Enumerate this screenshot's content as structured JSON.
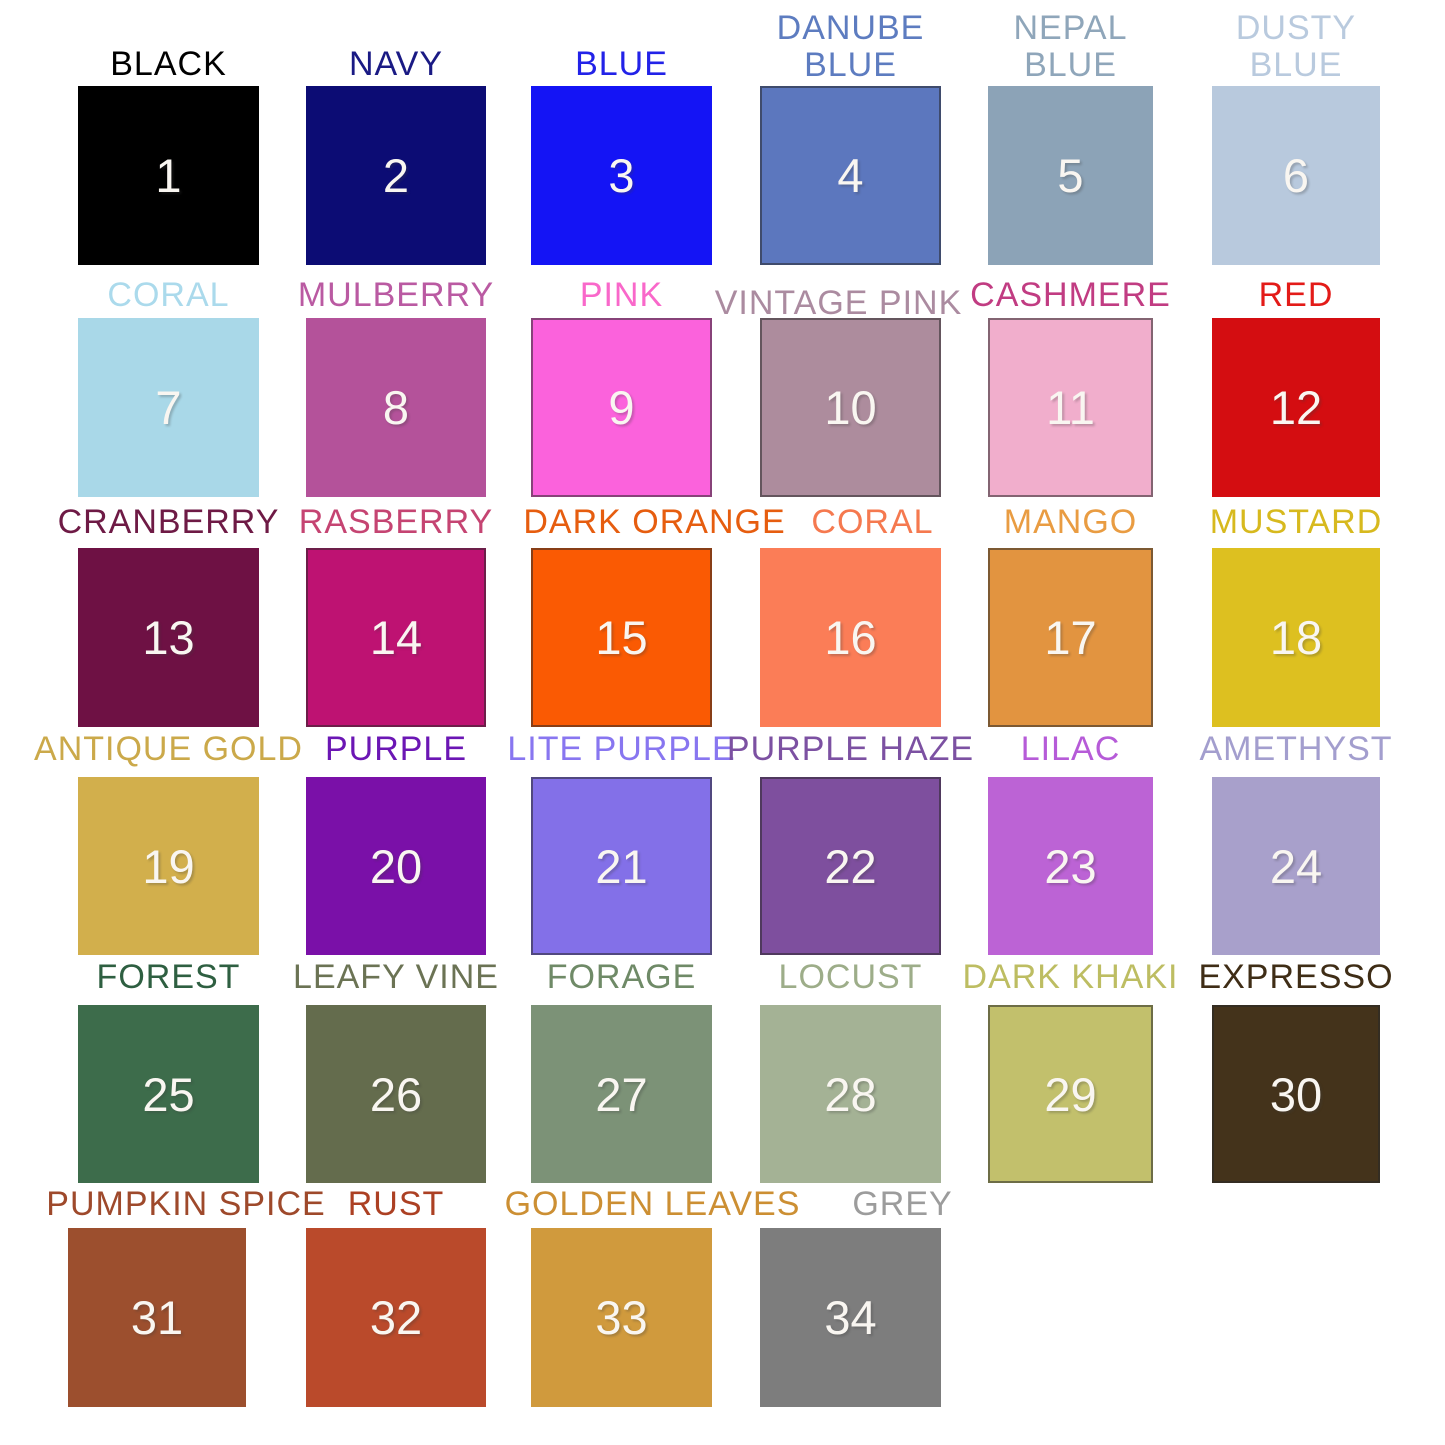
{
  "page": {
    "background": "#ffffff"
  },
  "chart_data": {
    "type": "table",
    "title": "",
    "rows": 6,
    "cols": 6,
    "swatches": [
      {
        "number": 1,
        "label": "BLACK",
        "color": "#000000",
        "label_color": "#000000",
        "bordered": false,
        "row": 1,
        "col": 1
      },
      {
        "number": 2,
        "label": "NAVY",
        "color": "#0c0c74",
        "label_color": "#1a1a84",
        "bordered": false,
        "row": 1,
        "col": 2
      },
      {
        "number": 3,
        "label": "BLUE",
        "color": "#1414f5",
        "label_color": "#2222e8",
        "bordered": false,
        "row": 1,
        "col": 3
      },
      {
        "number": 4,
        "label": "DANUBE BLUE",
        "color": "#5c77be",
        "label_color": "#5d7cc0",
        "bordered": true,
        "row": 1,
        "col": 4
      },
      {
        "number": 5,
        "label": "NEPAL BLUE",
        "color": "#8ca3b7",
        "label_color": "#8fa6ba",
        "bordered": false,
        "row": 1,
        "col": 5
      },
      {
        "number": 6,
        "label": "DUSTY BLUE",
        "color": "#b8c9dd",
        "label_color": "#b9cade",
        "bordered": false,
        "row": 1,
        "col": 6
      },
      {
        "number": 7,
        "label": "CORAL",
        "color": "#a9d8e8",
        "label_color": "#abdaec",
        "bordered": false,
        "row": 2,
        "col": 1
      },
      {
        "number": 8,
        "label": "MULBERRY",
        "color": "#b4529a",
        "label_color": "#ba5aa2",
        "bordered": false,
        "row": 2,
        "col": 2
      },
      {
        "number": 9,
        "label": "PINK",
        "color": "#fb62dc",
        "label_color": "#f968ca",
        "bordered": true,
        "row": 2,
        "col": 3
      },
      {
        "number": 10,
        "label": "VINTAGE PINK",
        "color": "#ad8c9d",
        "label_color": "#ab8ba0",
        "bordered": true,
        "row": 2,
        "col": 4
      },
      {
        "number": 11,
        "label": "CASHMERE",
        "color": "#f1aecc",
        "label_color": "#c13c82",
        "bordered": true,
        "row": 2,
        "col": 5
      },
      {
        "number": 12,
        "label": "RED",
        "color": "#d40d11",
        "label_color": "#e31b18",
        "bordered": false,
        "row": 2,
        "col": 6
      },
      {
        "number": 13,
        "label": "CRANBERRY",
        "color": "#6e1144",
        "label_color": "#6e1a45",
        "bordered": false,
        "row": 3,
        "col": 1
      },
      {
        "number": 14,
        "label": "RASBERRY",
        "color": "#be1272",
        "label_color": "#c54472",
        "bordered": true,
        "row": 3,
        "col": 2
      },
      {
        "number": 15,
        "label": "DARK ORANGE",
        "color": "#fa5a03",
        "label_color": "#e65d0f",
        "bordered": true,
        "row": 3,
        "col": 3
      },
      {
        "number": 16,
        "label": "CORAL",
        "color": "#fb7d57",
        "label_color": "#f5794f",
        "bordered": false,
        "row": 3,
        "col": 4
      },
      {
        "number": 17,
        "label": "MANGO",
        "color": "#e29440",
        "label_color": "#e99c42",
        "bordered": true,
        "row": 3,
        "col": 5
      },
      {
        "number": 18,
        "label": "MUSTARD",
        "color": "#ddc020",
        "label_color": "#d7b91e",
        "bordered": false,
        "row": 3,
        "col": 6
      },
      {
        "number": 19,
        "label": "ANTIQUE GOLD",
        "color": "#d2af4c",
        "label_color": "#cba94a",
        "bordered": false,
        "row": 4,
        "col": 1
      },
      {
        "number": 20,
        "label": "PURPLE",
        "color": "#7a10a8",
        "label_color": "#6b16b4",
        "bordered": false,
        "row": 4,
        "col": 2
      },
      {
        "number": 21,
        "label": "LITE PURPLE",
        "color": "#8370e8",
        "label_color": "#8876f0",
        "bordered": true,
        "row": 4,
        "col": 3
      },
      {
        "number": 22,
        "label": "PURPLE HAZE",
        "color": "#7e4f9e",
        "label_color": "#7c51a2",
        "bordered": true,
        "row": 4,
        "col": 4
      },
      {
        "number": 23,
        "label": "LILAC",
        "color": "#bc63d5",
        "label_color": "#b65bd8",
        "bordered": false,
        "row": 4,
        "col": 5
      },
      {
        "number": 24,
        "label": "AMETHYST",
        "color": "#a8a0cb",
        "label_color": "#a39ece",
        "bordered": false,
        "row": 4,
        "col": 6
      },
      {
        "number": 25,
        "label": "FOREST",
        "color": "#3d6c4b",
        "label_color": "#2e5f41",
        "bordered": false,
        "row": 5,
        "col": 1
      },
      {
        "number": 26,
        "label": "LEAFY VINE",
        "color": "#646c4d",
        "label_color": "#6b7354",
        "bordered": false,
        "row": 5,
        "col": 2
      },
      {
        "number": 27,
        "label": "FORAGE",
        "color": "#7c9277",
        "label_color": "#6f8a67",
        "bordered": false,
        "row": 5,
        "col": 3
      },
      {
        "number": 28,
        "label": "LOCUST",
        "color": "#a4b295",
        "label_color": "#9dad89",
        "bordered": false,
        "row": 5,
        "col": 4
      },
      {
        "number": 29,
        "label": "DARK KHAKI",
        "color": "#c2c06c",
        "label_color": "#bdbd62",
        "bordered": true,
        "row": 5,
        "col": 5
      },
      {
        "number": 30,
        "label": "EXPRESSO",
        "color": "#44331b",
        "label_color": "#3f2d16",
        "bordered": true,
        "row": 5,
        "col": 6
      },
      {
        "number": 31,
        "label": "PUMPKIN SPICE",
        "color": "#9c4f2e",
        "label_color": "#9e492b",
        "bordered": false,
        "row": 6,
        "col": 1
      },
      {
        "number": 32,
        "label": "RUST",
        "color": "#ba4a2b",
        "label_color": "#ac4023",
        "bordered": false,
        "row": 6,
        "col": 2
      },
      {
        "number": 33,
        "label": "GOLDEN LEAVES",
        "color": "#d09a3d",
        "label_color": "#cc8f33",
        "bordered": false,
        "row": 6,
        "col": 3
      },
      {
        "number": 34,
        "label": "GREY",
        "color": "#7d7d7d",
        "label_color": "#9c9c9c",
        "bordered": false,
        "row": 6,
        "col": 4
      }
    ]
  }
}
